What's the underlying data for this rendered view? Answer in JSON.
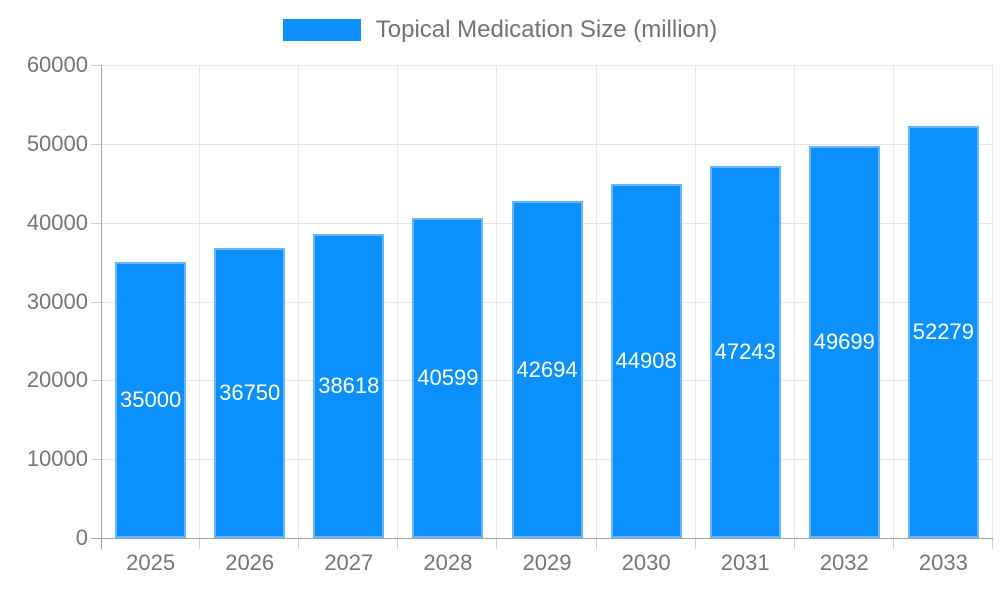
{
  "legend": {
    "label": "Topical Medication Size (million)",
    "swatch_color": "#0c90fc"
  },
  "chart_data": {
    "type": "bar",
    "title": "Topical Medication Size (million)",
    "categories": [
      "2025",
      "2026",
      "2027",
      "2028",
      "2029",
      "2030",
      "2031",
      "2032",
      "2033"
    ],
    "values": [
      35000,
      36750,
      38618,
      40599,
      42694,
      44908,
      47243,
      49699,
      52279
    ],
    "series": [
      {
        "name": "Topical Medication Size (million)",
        "values": [
          35000,
          36750,
          38618,
          40599,
          42694,
          44908,
          47243,
          49699,
          52279
        ]
      }
    ],
    "value_labels": [
      "35000",
      "36750",
      "38618",
      "40599",
      "42694",
      "44908",
      "47243",
      "49699",
      "52279"
    ],
    "xlabel": "",
    "ylabel": "",
    "ylim": [
      0,
      60000
    ],
    "ytick_step": 10000,
    "yticks": [
      "0",
      "10000",
      "20000",
      "30000",
      "40000",
      "50000",
      "60000"
    ],
    "grid": true,
    "legend_position": "top",
    "colors": {
      "bar_fill": "#0c90fc",
      "bar_border": "#6ab5f6",
      "value_label_text": "#ffffff",
      "axis_text": "#757575",
      "legend_text": "#737373",
      "gridline": "#e6e6e6",
      "axis_line": "#a3a3a3",
      "tick_mark": "#cfcfcf",
      "background": "#ffffff"
    }
  }
}
